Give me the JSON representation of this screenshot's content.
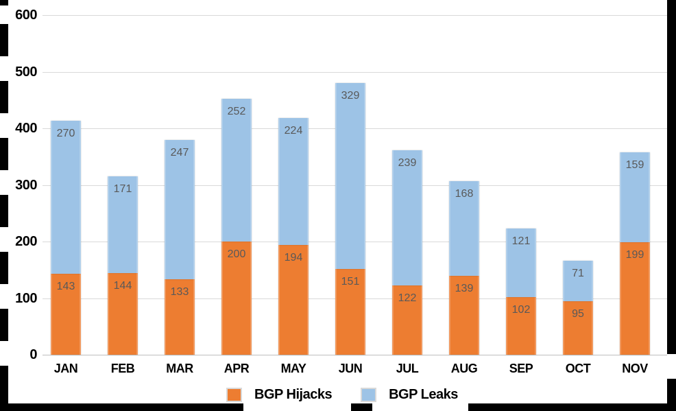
{
  "chart_data": {
    "type": "bar",
    "stacked": true,
    "title": "",
    "xlabel": "",
    "ylabel": "",
    "categories": [
      "JAN",
      "FEB",
      "MAR",
      "APR",
      "MAY",
      "JUN",
      "JUL",
      "AUG",
      "SEP",
      "OCT",
      "NOV"
    ],
    "series": [
      {
        "name": "BGP Hijacks",
        "color": "#ED7D31",
        "values": [
          143,
          144,
          133,
          200,
          194,
          151,
          122,
          139,
          102,
          95,
          199
        ]
      },
      {
        "name": "BGP Leaks",
        "color": "#9DC3E6",
        "values": [
          270,
          171,
          247,
          252,
          224,
          329,
          239,
          168,
          121,
          71,
          159
        ]
      }
    ],
    "ylim": [
      0,
      600
    ],
    "yticks": [
      0,
      100,
      200,
      300,
      400,
      500,
      600
    ],
    "grid": true,
    "legend_position": "bottom",
    "value_labels": "inside-end",
    "value_label_color": "#595959",
    "gridline_color": "#D9D9D9",
    "axisline_color": "#BFBFBF",
    "frame_color": "#000000"
  }
}
